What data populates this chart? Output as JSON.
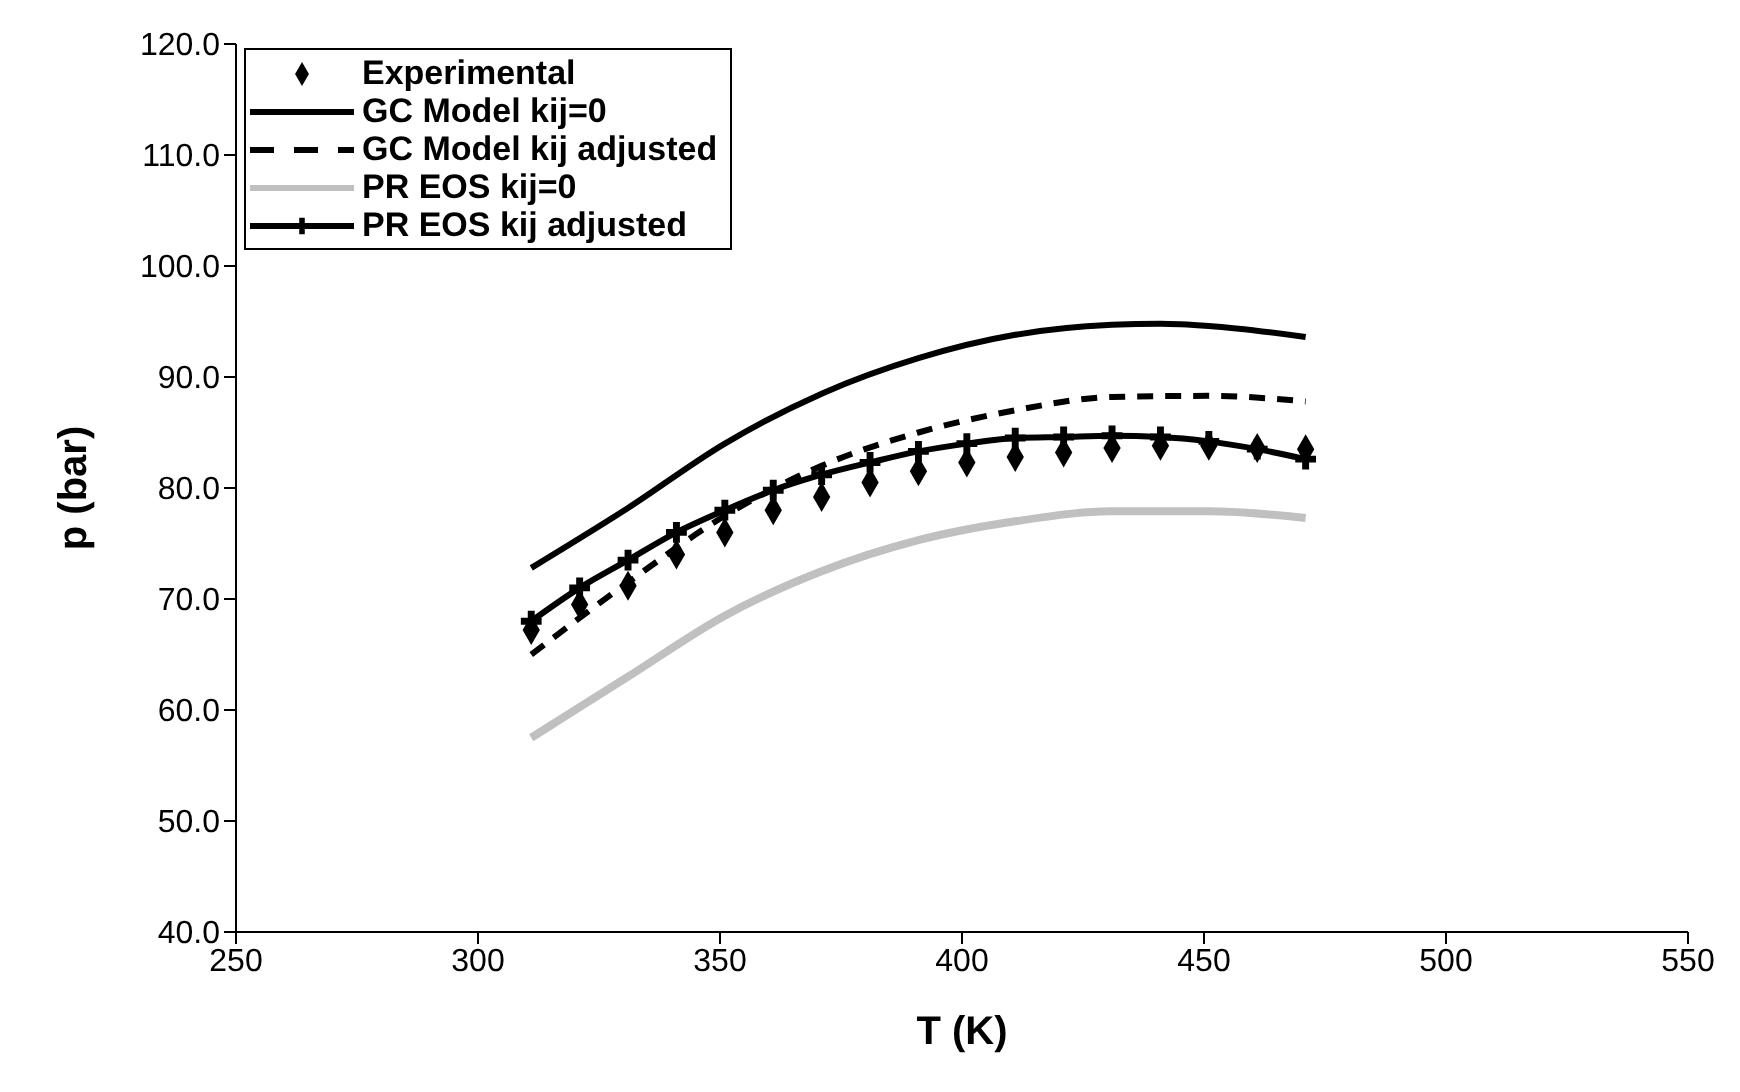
{
  "chart_data": {
    "type": "line",
    "xlabel": "T (K)",
    "ylabel": "p (bar)",
    "xlim": [
      250,
      550
    ],
    "xticks": [
      250,
      300,
      350,
      400,
      450,
      500,
      550
    ],
    "ylim": [
      40,
      120
    ],
    "yticks": [
      {
        "value": 40,
        "label": "40.0"
      },
      {
        "value": 50,
        "label": "50.0"
      },
      {
        "value": 60,
        "label": "60.0"
      },
      {
        "value": 70,
        "label": "70.0"
      },
      {
        "value": 80,
        "label": "80.0"
      },
      {
        "value": 90,
        "label": "90.0"
      },
      {
        "value": 100,
        "label": "100.0"
      },
      {
        "value": 110,
        "label": "110.0"
      },
      {
        "value": 120,
        "label": "120.0"
      }
    ],
    "grid": false,
    "legend": "top left",
    "series": [
      {
        "name": "Experimental",
        "type": "scatter",
        "marker": "diamond",
        "color": "#000000",
        "x": [
          311,
          321,
          331,
          341,
          351,
          361,
          371,
          381,
          391,
          401,
          411,
          421,
          431,
          441,
          451,
          461,
          471
        ],
        "values": [
          67.2,
          69.5,
          71.2,
          74.0,
          76.0,
          78.0,
          79.2,
          80.5,
          81.5,
          82.3,
          82.8,
          83.2,
          83.6,
          83.8,
          83.8,
          83.6,
          83.5
        ]
      },
      {
        "name": "GC Model kij=0",
        "line_style": "solid",
        "marker": "none",
        "color": "#000000",
        "x": [
          311,
          331,
          351,
          371,
          391,
          411,
          431,
          441,
          451,
          471
        ],
        "values": [
          72.8,
          78.2,
          84.0,
          88.5,
          91.7,
          93.8,
          94.7,
          94.8,
          94.6,
          93.6
        ]
      },
      {
        "name": "GC Model kij adjusted",
        "line_style": "dashed",
        "marker": "none",
        "color": "#000000",
        "x": [
          311,
          331,
          351,
          371,
          391,
          411,
          431,
          451,
          471
        ],
        "values": [
          65.0,
          71.5,
          77.5,
          82.0,
          85.0,
          87.0,
          88.2,
          88.3,
          87.8
        ]
      },
      {
        "name": "PR EOS kij=0",
        "line_style": "solid",
        "marker": "none",
        "color": "#c0c0c0",
        "x": [
          311,
          331,
          351,
          371,
          391,
          411,
          431,
          451,
          471
        ],
        "values": [
          57.5,
          63.0,
          68.5,
          72.5,
          75.3,
          77.0,
          77.9,
          77.9,
          77.3
        ]
      },
      {
        "name": "PR EOS kij adjusted",
        "line_style": "solid",
        "marker": "cross",
        "color": "#000000",
        "x": [
          311,
          321,
          331,
          341,
          351,
          361,
          371,
          381,
          391,
          401,
          411,
          421,
          431,
          441,
          451,
          461,
          471
        ],
        "values": [
          68.0,
          71.0,
          73.5,
          76.0,
          78.0,
          79.8,
          81.2,
          82.3,
          83.3,
          84.0,
          84.5,
          84.6,
          84.7,
          84.6,
          84.2,
          83.5,
          82.6
        ]
      }
    ]
  }
}
